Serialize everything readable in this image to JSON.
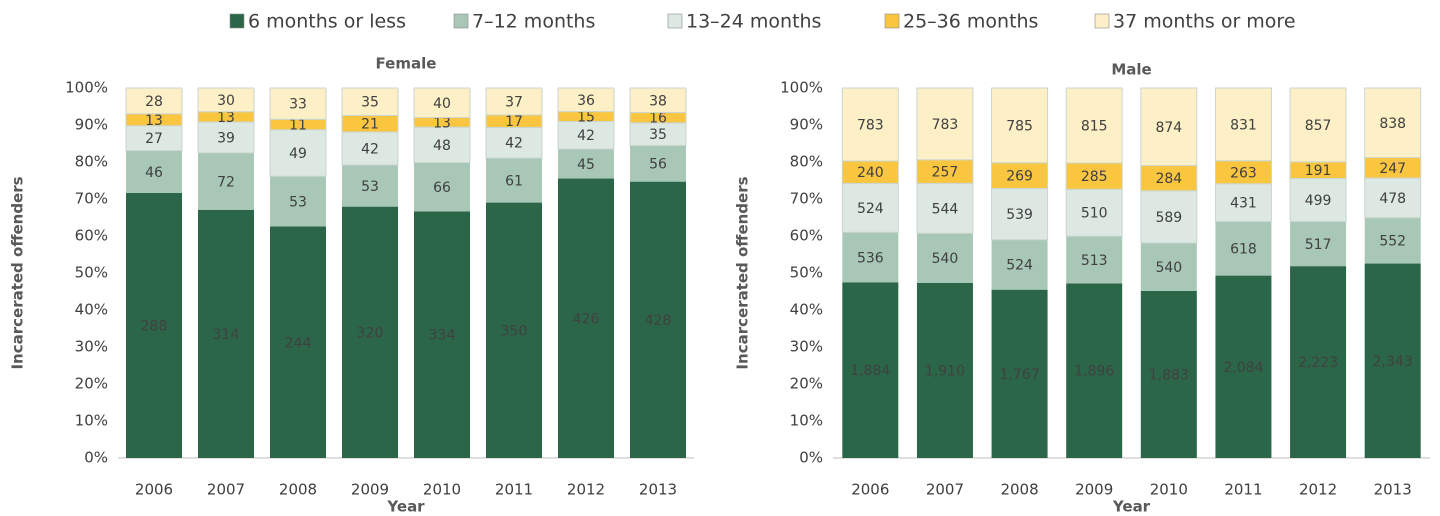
{
  "chart_data": [
    {
      "type": "bar",
      "stacking": "percent",
      "title": "Female",
      "xlabel": "Year",
      "ylabel": "Incarcerated offenders",
      "categories": [
        "2006",
        "2007",
        "2008",
        "2009",
        "2010",
        "2011",
        "2012",
        "2013"
      ],
      "ylim": [
        0,
        100
      ],
      "yticks": [
        {
          "value": 0,
          "label": "0%"
        },
        {
          "value": 10,
          "label": "10%"
        },
        {
          "value": 20,
          "label": "20%"
        },
        {
          "value": 30,
          "label": "30%"
        },
        {
          "value": 40,
          "label": "40%"
        },
        {
          "value": 50,
          "label": "50%"
        },
        {
          "value": 60,
          "label": "60%"
        },
        {
          "value": 70,
          "label": "70%"
        },
        {
          "value": 80,
          "label": "80%"
        },
        {
          "value": 90,
          "label": "90%"
        },
        {
          "value": 100,
          "label": "100%"
        }
      ],
      "series": [
        {
          "name": "6 months or less",
          "color": "#2b6649",
          "values": [
            288,
            314,
            244,
            320,
            334,
            350,
            426,
            428
          ]
        },
        {
          "name": "7–12 months",
          "color": "#a8c7b7",
          "values": [
            46,
            72,
            53,
            53,
            66,
            61,
            45,
            56
          ]
        },
        {
          "name": "13–24 months",
          "color": "#dce8e1",
          "values": [
            27,
            39,
            49,
            42,
            48,
            42,
            42,
            35
          ]
        },
        {
          "name": "25–36 months",
          "color": "#fbc63f",
          "values": [
            13,
            13,
            11,
            21,
            13,
            17,
            15,
            16
          ]
        },
        {
          "name": "37 months or more",
          "color": "#fdf0c6",
          "values": [
            28,
            30,
            33,
            35,
            40,
            37,
            36,
            38
          ]
        }
      ]
    },
    {
      "type": "bar",
      "stacking": "percent",
      "title": "Male",
      "xlabel": "Year",
      "ylabel": "Incarcerated offenders",
      "categories": [
        "2006",
        "2007",
        "2008",
        "2009",
        "2010",
        "2011",
        "2012",
        "2013"
      ],
      "ylim": [
        0,
        100
      ],
      "yticks": [
        {
          "value": 0,
          "label": "0%"
        },
        {
          "value": 10,
          "label": "10%"
        },
        {
          "value": 20,
          "label": "20%"
        },
        {
          "value": 30,
          "label": "30%"
        },
        {
          "value": 40,
          "label": "40%"
        },
        {
          "value": 50,
          "label": "50%"
        },
        {
          "value": 60,
          "label": "60%"
        },
        {
          "value": 70,
          "label": "70%"
        },
        {
          "value": 80,
          "label": "80%"
        },
        {
          "value": 90,
          "label": "90%"
        },
        {
          "value": 100,
          "label": "100%"
        }
      ],
      "series": [
        {
          "color": "#2b6649",
          "values": [
            1884,
            1910,
            1767,
            1896,
            1883,
            2084,
            2223,
            2343
          ],
          "value_labels": [
            "1,884",
            "1,910",
            "1,767",
            "1,896",
            "1,883",
            "2,084",
            "2,223",
            "2,343"
          ]
        },
        {
          "color": "#a8c7b7",
          "values": [
            536,
            540,
            524,
            513,
            540,
            618,
            517,
            552
          ]
        },
        {
          "color": "#dce8e1",
          "values": [
            524,
            544,
            539,
            510,
            589,
            431,
            499,
            478
          ]
        },
        {
          "color": "#fbc63f",
          "values": [
            240,
            257,
            269,
            285,
            284,
            263,
            191,
            247
          ]
        },
        {
          "color": "#fdf0c6",
          "values": [
            783,
            783,
            785,
            815,
            874,
            831,
            857,
            838
          ]
        }
      ]
    }
  ]
}
